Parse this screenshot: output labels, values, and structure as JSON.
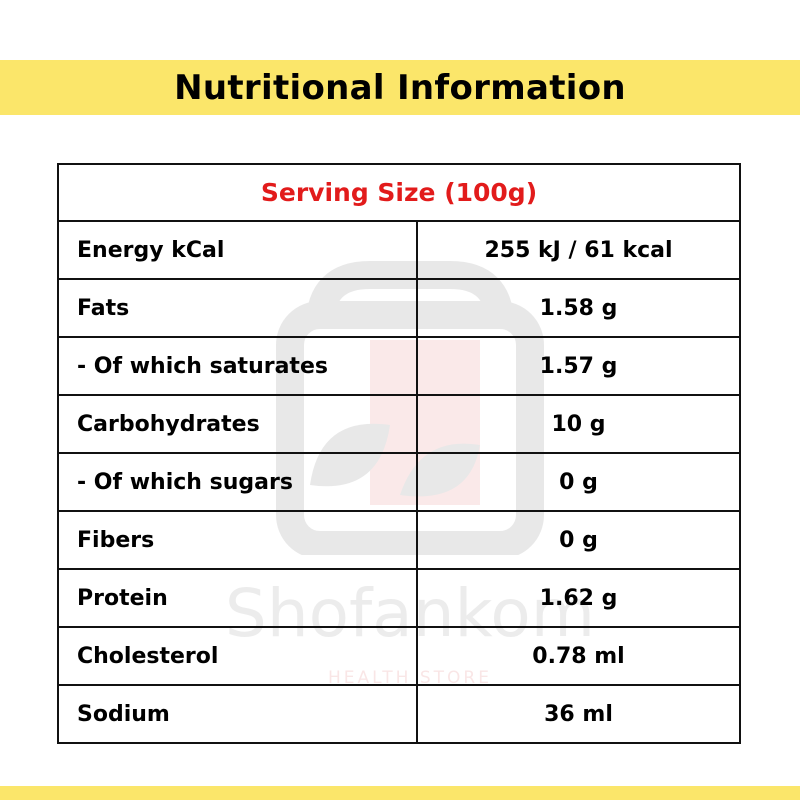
{
  "header": {
    "title": "Nutritional Information",
    "band_color": "#fbe66a"
  },
  "table": {
    "serving_size": "Serving Size (100g)",
    "serving_color": "#e21b1b",
    "rows": [
      {
        "name": "Energy kCal",
        "value": "255 kJ / 61 kcal"
      },
      {
        "name": "Fats",
        "value": "1.58 g"
      },
      {
        "name": "- Of which saturates",
        "value": "1.57 g"
      },
      {
        "name": "Carbohydrates",
        "value": "10 g"
      },
      {
        "name": "- Of which sugars",
        "value": "0 g"
      },
      {
        "name": "Fibers",
        "value": "0 g"
      },
      {
        "name": "Protein",
        "value": "1.62 g"
      },
      {
        "name": "Cholesterol",
        "value": "0.78 ml"
      },
      {
        "name": "Sodium",
        "value": "36 ml"
      }
    ]
  },
  "watermark": {
    "brand": "Shofankom",
    "tagline": "HEALTH STORE",
    "icon": "shopping-bag-leaf-icon"
  }
}
